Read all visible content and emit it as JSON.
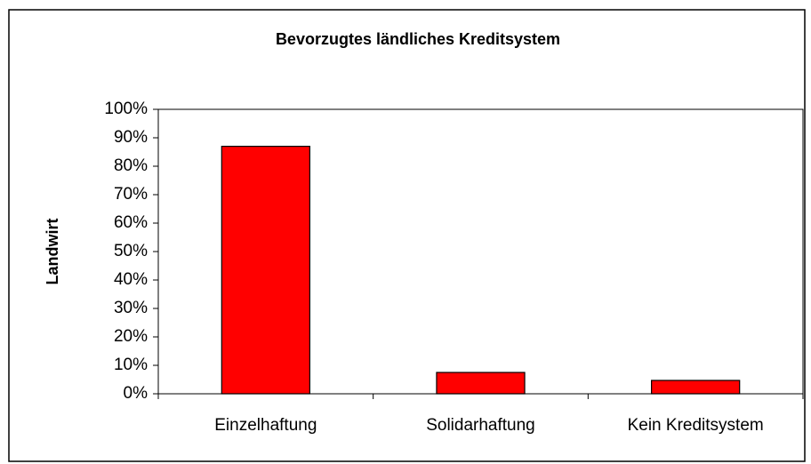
{
  "chart_data": {
    "type": "bar",
    "title": "Bevorzugtes ländliches Kreditsystem",
    "y_label": "Landwirt",
    "categories": [
      "Einzelhaftung",
      "Solidarhaftung",
      "Kein Kreditsystem"
    ],
    "values": [
      87,
      7.5,
      4.7
    ],
    "color": "#ff0000",
    "ylim": [
      0,
      100
    ],
    "yticks": [
      {
        "value": 0,
        "label": "0%"
      },
      {
        "value": 10,
        "label": "10%"
      },
      {
        "value": 20,
        "label": "20%"
      },
      {
        "value": 30,
        "label": "30%"
      },
      {
        "value": 40,
        "label": "40%"
      },
      {
        "value": 50,
        "label": "50%"
      },
      {
        "value": 60,
        "label": "60%"
      },
      {
        "value": 70,
        "label": "70%"
      },
      {
        "value": 80,
        "label": "80%"
      },
      {
        "value": 90,
        "label": "90%"
      },
      {
        "value": 100,
        "label": "100%"
      }
    ],
    "grid": false
  }
}
